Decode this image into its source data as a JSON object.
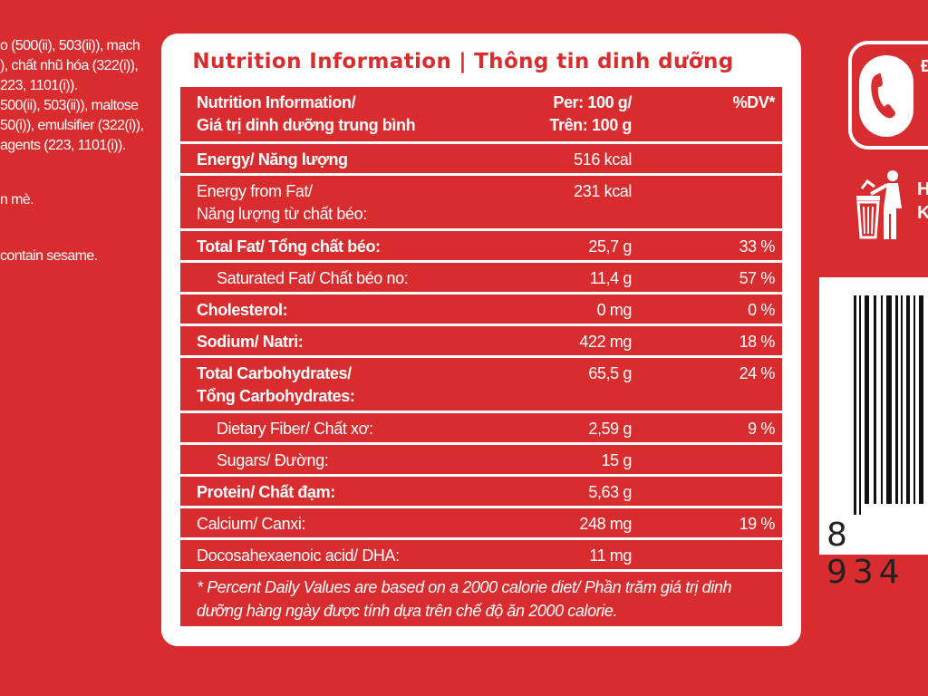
{
  "left_text": {
    "lines": [
      "o (500(ii), 503(ii)), mạch",
      "), chất nhũ hóa (322(i)),",
      "223, 1101(i)).",
      "500(ii), 503(ii)), maltose",
      "50(i)), emulsifier (322(i)),",
      "agents (223, 1101(i)).",
      "n mè.",
      "contain sesame."
    ]
  },
  "panel": {
    "title_en": "Nutrition Information",
    "title_sep": "|",
    "title_vi": "Thông tin dinh dưỡng",
    "header": {
      "name_line1": "Nutrition Information/",
      "name_line2": "Giá trị dinh dưỡng trung bình",
      "per_line1": "Per: 100 g/",
      "per_line2": "Trên: 100 g",
      "dv": "%DV*"
    },
    "rows": [
      {
        "name1": "Energy/ Năng lượng",
        "name2": "",
        "per": "516 kcal",
        "dv": ""
      },
      {
        "name1": "Energy from Fat/",
        "name2": "Năng lượng từ chất béo:",
        "per": "231 kcal",
        "dv": ""
      },
      {
        "name1": "Total Fat/ Tổng chất béo:",
        "name2": "",
        "per": "25,7 g",
        "dv": "33 %"
      },
      {
        "name1": "Saturated Fat/ Chất béo no:",
        "name2": "",
        "per": "11,4 g",
        "dv": "57 %"
      },
      {
        "name1": "Cholesterol:",
        "name2": "",
        "per": "0 mg",
        "dv": "0 %"
      },
      {
        "name1": "Sodium/ Natri:",
        "name2": "",
        "per": "422 mg",
        "dv": "18 %"
      },
      {
        "name1": "Total Carbohydrates/",
        "name2": "Tổng Carbohydrates:",
        "per": "65,5 g",
        "dv": "24 %"
      },
      {
        "name1": "Dietary Fiber/ Chất xơ:",
        "name2": "",
        "per": "2,59 g",
        "dv": "9 %"
      },
      {
        "name1": "Sugars/ Đường:",
        "name2": "",
        "per": "15 g",
        "dv": ""
      },
      {
        "name1": "Protein/ Chất đạm:",
        "name2": "",
        "per": "5,63 g",
        "dv": ""
      },
      {
        "name1": "Calcium/ Canxi:",
        "name2": "",
        "per": "248 mg",
        "dv": "19 %"
      },
      {
        "name1": "Docosahexaenoic acid/ DHA:",
        "name2": "",
        "per": "11 mg",
        "dv": ""
      }
    ],
    "footnote_line1": "* Percent Daily Values are based on a 2000 calorie diet/ Phần trăm giá trị dinh",
    "footnote_line2": "dưỡng hàng ngày được tính dựa trên chế độ ăn 2000 calorie."
  },
  "right": {
    "phone_icon": "phone-icon",
    "phone_text": "Đị",
    "trash_icon": "trash-disposal-icon",
    "trash_text_line1": "H",
    "trash_text_line2": "K",
    "barcode_digits": "8 934"
  },
  "colors": {
    "background": "#d92c2e",
    "panel": "#ffffff",
    "text": "#ffffff"
  }
}
